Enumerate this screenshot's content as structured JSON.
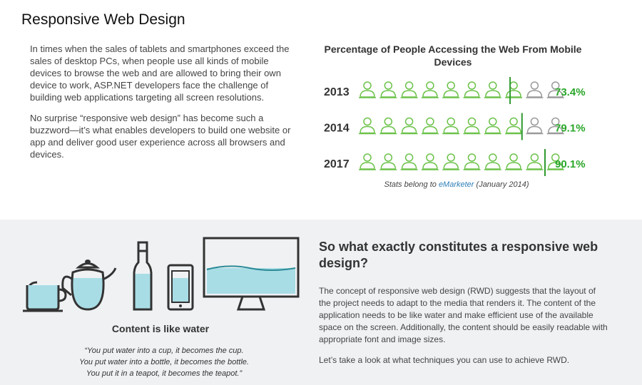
{
  "header": {
    "title": "Responsive Web Design"
  },
  "intro": {
    "p1": "In times when the sales of tablets and smartphones exceed the sales of desktop PCs, when people use all kinds of mobile devices to browse the web and are allowed to bring their own device to work, ASP.NET developers face the challenge of building web applications targeting all screen resolutions.",
    "p2": "No surprise “responsive web design” has become such a buzzword—it’s what enables developers to build one website or app and deliver good user experience across all browsers and devices."
  },
  "chart_data": {
    "type": "pictograph",
    "title": "Percentage of People Accessing the Web From Mobile Devices",
    "icons_per_row": 10,
    "rows": [
      {
        "year": "2013",
        "value": 73.4,
        "label": "73.4%"
      },
      {
        "year": "2014",
        "value": 79.1,
        "label": "79.1%"
      },
      {
        "year": "2017",
        "value": 90.1,
        "label": "90.1%"
      }
    ],
    "source_prefix": "Stats belong to ",
    "source_link": "eMarketer",
    "source_suffix": " (January 2014)",
    "colors": {
      "filled": "#6cc24a",
      "empty": "#9a9a9a",
      "marker": "#2e9a2e",
      "value_text": "#2aa72a"
    }
  },
  "illustration": {
    "heading": "Content is like water",
    "quote_lines": [
      "“You put water into a cup, it becomes the cup.",
      "You put water into a bottle, it becomes the bottle.",
      "You put it in a teapot, it becomes the teapot.”"
    ],
    "colors": {
      "water": "#a9dde6",
      "outline": "#333333"
    }
  },
  "rwd": {
    "heading": "So what exactly constitutes a responsive web design?",
    "p1": "The concept of responsive web design (RWD) suggests that the layout of the project needs to adapt to the media that renders it. The content of the application needs to be like water and make efficient use of the available space on the screen. Additionally, the content should be easily readable with appropriate font and image sizes.",
    "p2": "Let’s take a look at what techniques you can use to achieve RWD."
  }
}
